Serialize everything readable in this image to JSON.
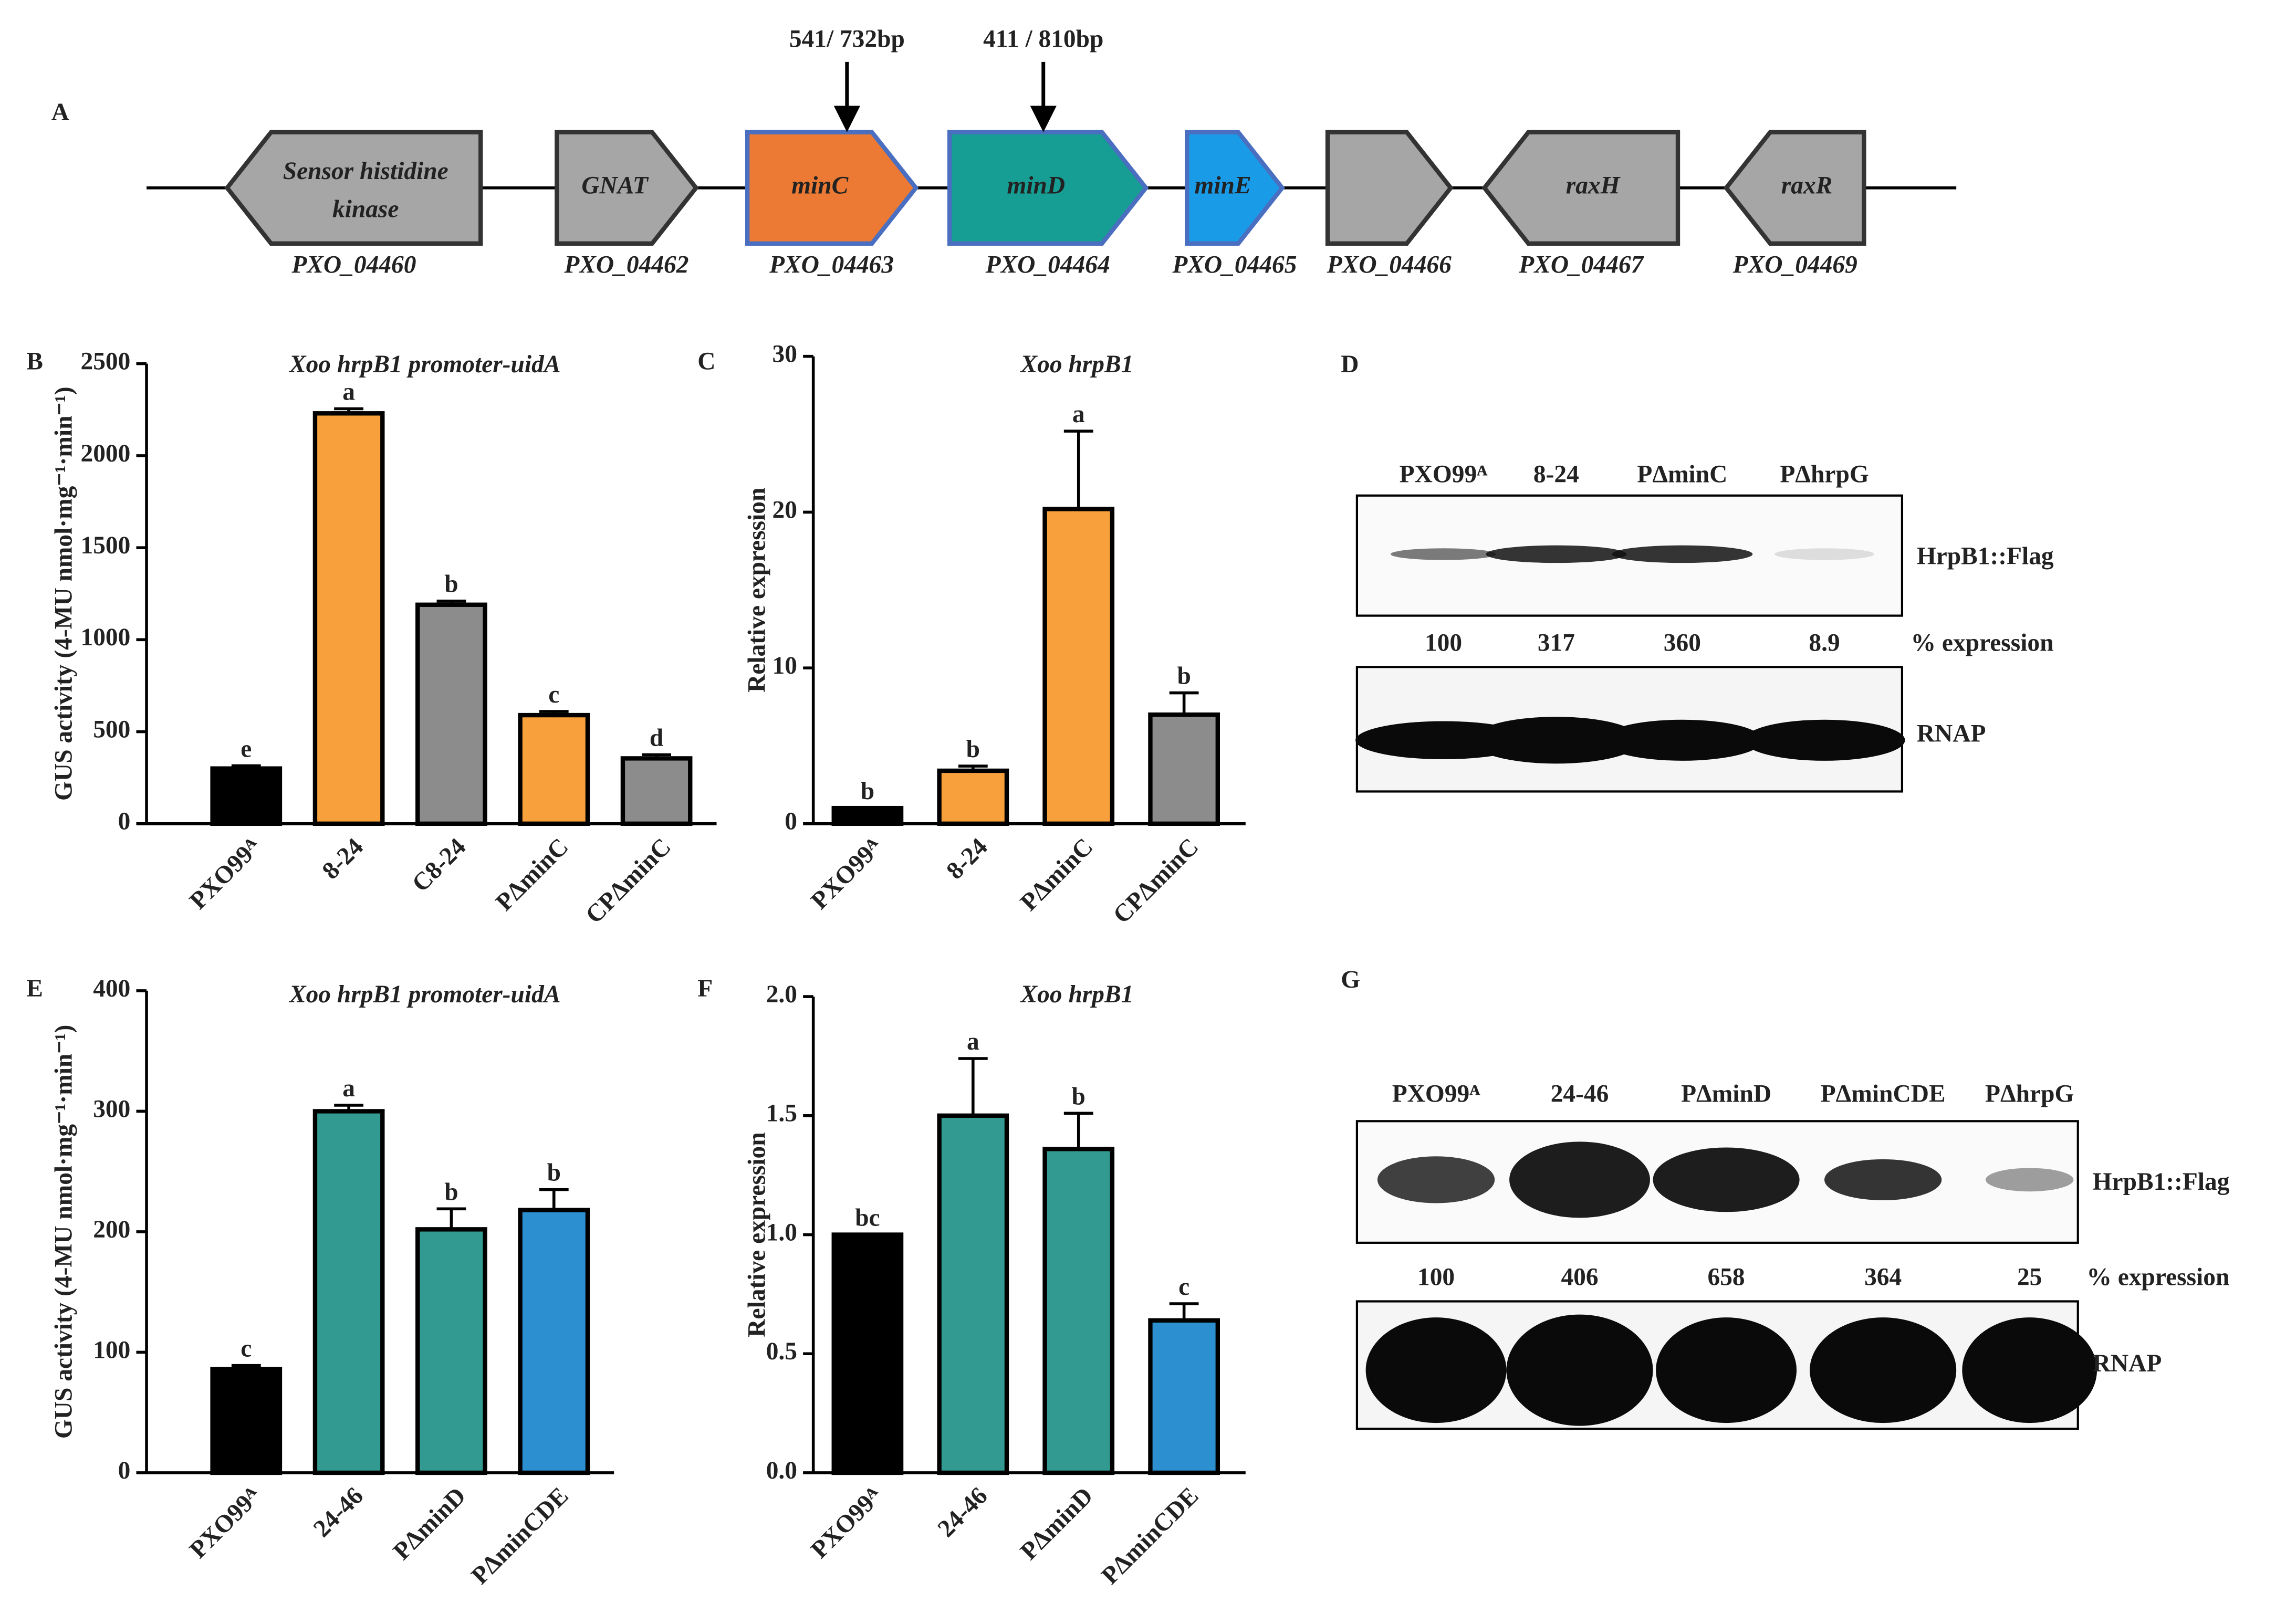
{
  "gene_map": {
    "label": "A",
    "genes": [
      {
        "name": [
          "Sensor histidine",
          "kinase"
        ],
        "locus": "PXO_04460",
        "color": "#a6a6a6"
      },
      {
        "name": "GNAT",
        "locus": "PXO_04462",
        "color": "#a6a6a6"
      },
      {
        "name": "minC",
        "locus": "PXO_04463",
        "color": "#ec7a34",
        "insertion": "541/ 732bp"
      },
      {
        "name": "minD",
        "locus": "PXO_04464",
        "color": "#179e94",
        "insertion": "411 / 810bp"
      },
      {
        "name": "minE",
        "locus": "PXO_04465",
        "color": "#1a9be8"
      },
      {
        "locus": "PXO_04466",
        "color": "#a6a6a6"
      },
      {
        "name": "raxH",
        "locus": "PXO_04467",
        "color": "#a6a6a6"
      },
      {
        "name": "raxR",
        "locus": "PXO_04469",
        "color": "#a6a6a6"
      }
    ]
  },
  "chart_data": [
    {
      "type": "bar",
      "label": "B",
      "title": "Xoo hrpB1 promoter-uidA",
      "ylabel": "GUS activity (4-MU nmol·mg⁻¹·min⁻¹)",
      "categories": [
        "PXO99ᴬ",
        "8-24",
        "C8-24",
        "PΔminC",
        "CPΔminC"
      ],
      "values": [
        300,
        2230,
        1190,
        590,
        355
      ],
      "errors": [
        15,
        25,
        20,
        20,
        20
      ],
      "annotations": [
        "e",
        "a",
        "b",
        "c",
        "d"
      ],
      "colors": [
        "#000000",
        "#f7a03c",
        "#8c8c8c",
        "#f7a03c",
        "#8c8c8c"
      ],
      "ylim": [
        0,
        2500
      ],
      "yticks": [
        0,
        500,
        1000,
        1500,
        2000,
        2500
      ]
    },
    {
      "type": "bar",
      "label": "C",
      "title": "Xoo hrpB1",
      "ylabel": "Relative expression",
      "categories": [
        "PXO99ᴬ",
        "8-24",
        "PΔminC",
        "CPΔminC"
      ],
      "values": [
        1,
        3.4,
        20.2,
        7
      ],
      "errors": [
        0,
        0.3,
        5,
        1.4
      ],
      "annotations": [
        "b",
        "b",
        "a",
        "b"
      ],
      "colors": [
        "#000000",
        "#f7a03c",
        "#f7a03c",
        "#8c8c8c"
      ],
      "ylim": [
        0,
        30
      ],
      "yticks": [
        0,
        10,
        20,
        30
      ]
    },
    {
      "type": "bar",
      "label": "E",
      "title": "Xoo hrpB1 promoter-uidA",
      "ylabel": "GUS activity (4-MU nmol·mg⁻¹·min⁻¹)",
      "categories": [
        "PXO99ᴬ",
        "24-46",
        "PΔminD",
        "PΔminCDE"
      ],
      "values": [
        86,
        300,
        202,
        218
      ],
      "errors": [
        3,
        5,
        17,
        17
      ],
      "annotations": [
        "c",
        "a",
        "b",
        "b"
      ],
      "colors": [
        "#000000",
        "#339a91",
        "#339a91",
        "#2b8fd0"
      ],
      "ylim": [
        0,
        400
      ],
      "yticks": [
        0,
        100,
        200,
        300,
        400
      ]
    },
    {
      "type": "bar",
      "label": "F",
      "title": "Xoo hrpB1",
      "ylabel": "Relative expression",
      "categories": [
        "PXO99ᴬ",
        "24-46",
        "PΔminD",
        "PΔminCDE"
      ],
      "values": [
        1,
        1.5,
        1.36,
        0.64
      ],
      "errors": [
        0,
        0.24,
        0.15,
        0.07
      ],
      "annotations": [
        "bc",
        "a",
        "b",
        "c"
      ],
      "colors": [
        "#000000",
        "#339a91",
        "#339a91",
        "#2b8fd0"
      ],
      "ylim": [
        0,
        2
      ],
      "yticks": [
        {
          "value": 0,
          "label": "0.0"
        },
        0.5,
        {
          "value": 1,
          "label": "1.0"
        },
        1.5,
        {
          "value": 2,
          "label": "2.0"
        }
      ]
    }
  ],
  "blots": [
    {
      "label": "D",
      "lanes": [
        "PXO99ᴬ",
        "8-24",
        "PΔminC",
        "PΔhrpG"
      ],
      "target": "HrpB1::Flag",
      "quant_label": "% expression",
      "percent": [
        100,
        317,
        360,
        8.9
      ],
      "loading": "RNAP"
    },
    {
      "label": "G",
      "lanes": [
        "PXO99ᴬ",
        "24-46",
        "PΔminD",
        "PΔminCDE",
        "PΔhrpG"
      ],
      "target": "HrpB1::Flag",
      "quant_label": "% expression",
      "percent": [
        100,
        406,
        658,
        364,
        25
      ],
      "loading": "RNAP"
    }
  ]
}
